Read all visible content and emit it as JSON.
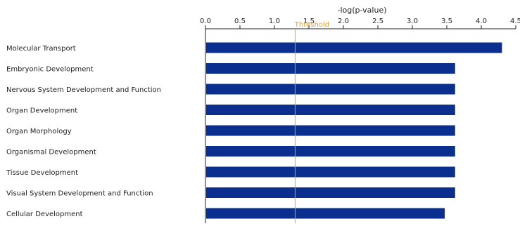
{
  "chart_data": {
    "type": "bar",
    "orientation": "horizontal",
    "title": "",
    "xlabel": "-log(p-value)",
    "ylabel": "",
    "xlim": [
      0,
      4.5
    ],
    "ticks": [
      0.0,
      0.5,
      1.0,
      1.5,
      2.0,
      2.5,
      3.0,
      3.5,
      4.0,
      4.5
    ],
    "tick_labels": [
      "0.0",
      "0.5",
      "1.0",
      "1.5",
      "2.0",
      "2.5",
      "3.0",
      "3.5",
      "4.0",
      "4.5"
    ],
    "axis_position": "top",
    "grid": false,
    "categories": [
      "Molecular Transport",
      "Embryonic Development",
      "Nervous System Development and Function",
      "Organ Development",
      "Organ Morphology",
      "Organismal Development",
      "Tissue Development",
      "Visual System Development and Function",
      "Cellular Development"
    ],
    "values": [
      4.3,
      3.62,
      3.62,
      3.62,
      3.62,
      3.62,
      3.62,
      3.62,
      3.47
    ],
    "threshold": {
      "value": 1.3,
      "label": "Threshold"
    },
    "colors": {
      "bar": "#0a2f8f",
      "threshold": "#e0a030",
      "axis": "#222222"
    }
  }
}
